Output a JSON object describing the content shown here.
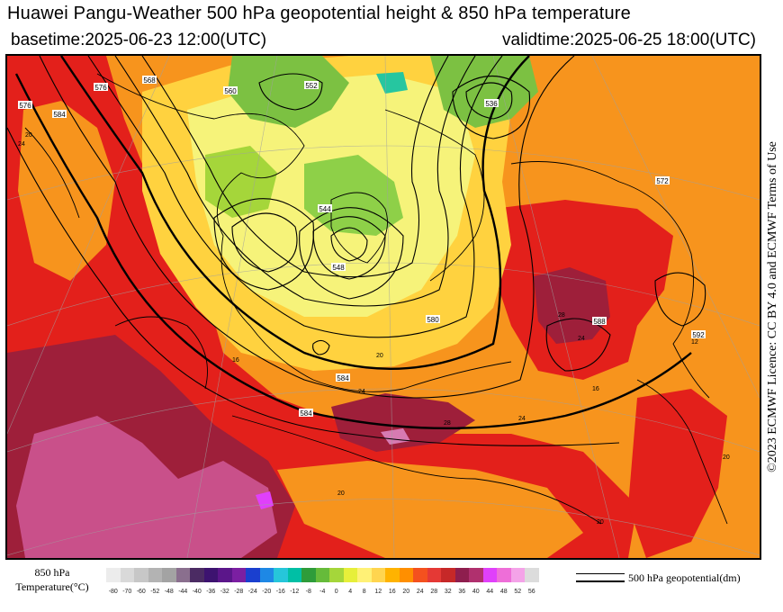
{
  "header": {
    "title": "Huawei Pangu-Weather 500 hPa geopotential height & 850 hPa temperature",
    "basetime": "basetime:2025-06-23 12:00(UTC)",
    "validtime": "validtime:2025-06-25 18:00(UTC)"
  },
  "license": "©2023 ECMWF Licence: CC BY 4.0 and ECMWF Terms of Use",
  "legend": {
    "title_line1": "850 hPa",
    "title_line2": "Temperature(°C)",
    "ticks": [
      "-80",
      "-70",
      "-60",
      "-52",
      "-48",
      "-44",
      "-40",
      "-36",
      "-32",
      "-28",
      "-24",
      "-20",
      "-16",
      "-12",
      "-8",
      "-4",
      "0",
      "4",
      "8",
      "12",
      "16",
      "20",
      "24",
      "28",
      "32",
      "36",
      "40",
      "44",
      "48",
      "52",
      "56"
    ],
    "colors": [
      "#ececec",
      "#d9d9d9",
      "#c7c7c7",
      "#b3b3b3",
      "#a3a3a3",
      "#8a6f8e",
      "#4b2b63",
      "#3d1370",
      "#5b168a",
      "#7b1fa2",
      "#1a3fcf",
      "#1e88e5",
      "#26c6da",
      "#00bfa5",
      "#2e9c3a",
      "#66bb3a",
      "#a5d63a",
      "#e7ef3a",
      "#fff176",
      "#ffd54f",
      "#ffb300",
      "#ff8f00",
      "#f4511e",
      "#e53935",
      "#c62828",
      "#8e1e4e",
      "#b0306e",
      "#e040fb",
      "#ee6ed8",
      "#f4a3e8",
      "#dcdcdc"
    ],
    "line_label": "500 hPa geopotential(dm)"
  },
  "map": {
    "contour_labels": [
      {
        "text": "576"
      },
      {
        "text": "584"
      },
      {
        "text": "568"
      },
      {
        "text": "560"
      },
      {
        "text": "552"
      },
      {
        "text": "544"
      },
      {
        "text": "536"
      },
      {
        "text": "548"
      },
      {
        "text": "580"
      },
      {
        "text": "584"
      },
      {
        "text": "584"
      },
      {
        "text": "576"
      },
      {
        "text": "572"
      },
      {
        "text": "588"
      },
      {
        "text": "592"
      }
    ],
    "temp_labels": [
      {
        "text": "20"
      },
      {
        "text": "24"
      },
      {
        "text": "20"
      },
      {
        "text": "24"
      },
      {
        "text": "28"
      },
      {
        "text": "16"
      },
      {
        "text": "12"
      },
      {
        "text": "28"
      },
      {
        "text": "24"
      },
      {
        "text": "20"
      },
      {
        "text": "20"
      },
      {
        "text": "24"
      },
      {
        "text": "20"
      },
      {
        "text": "16"
      }
    ]
  }
}
